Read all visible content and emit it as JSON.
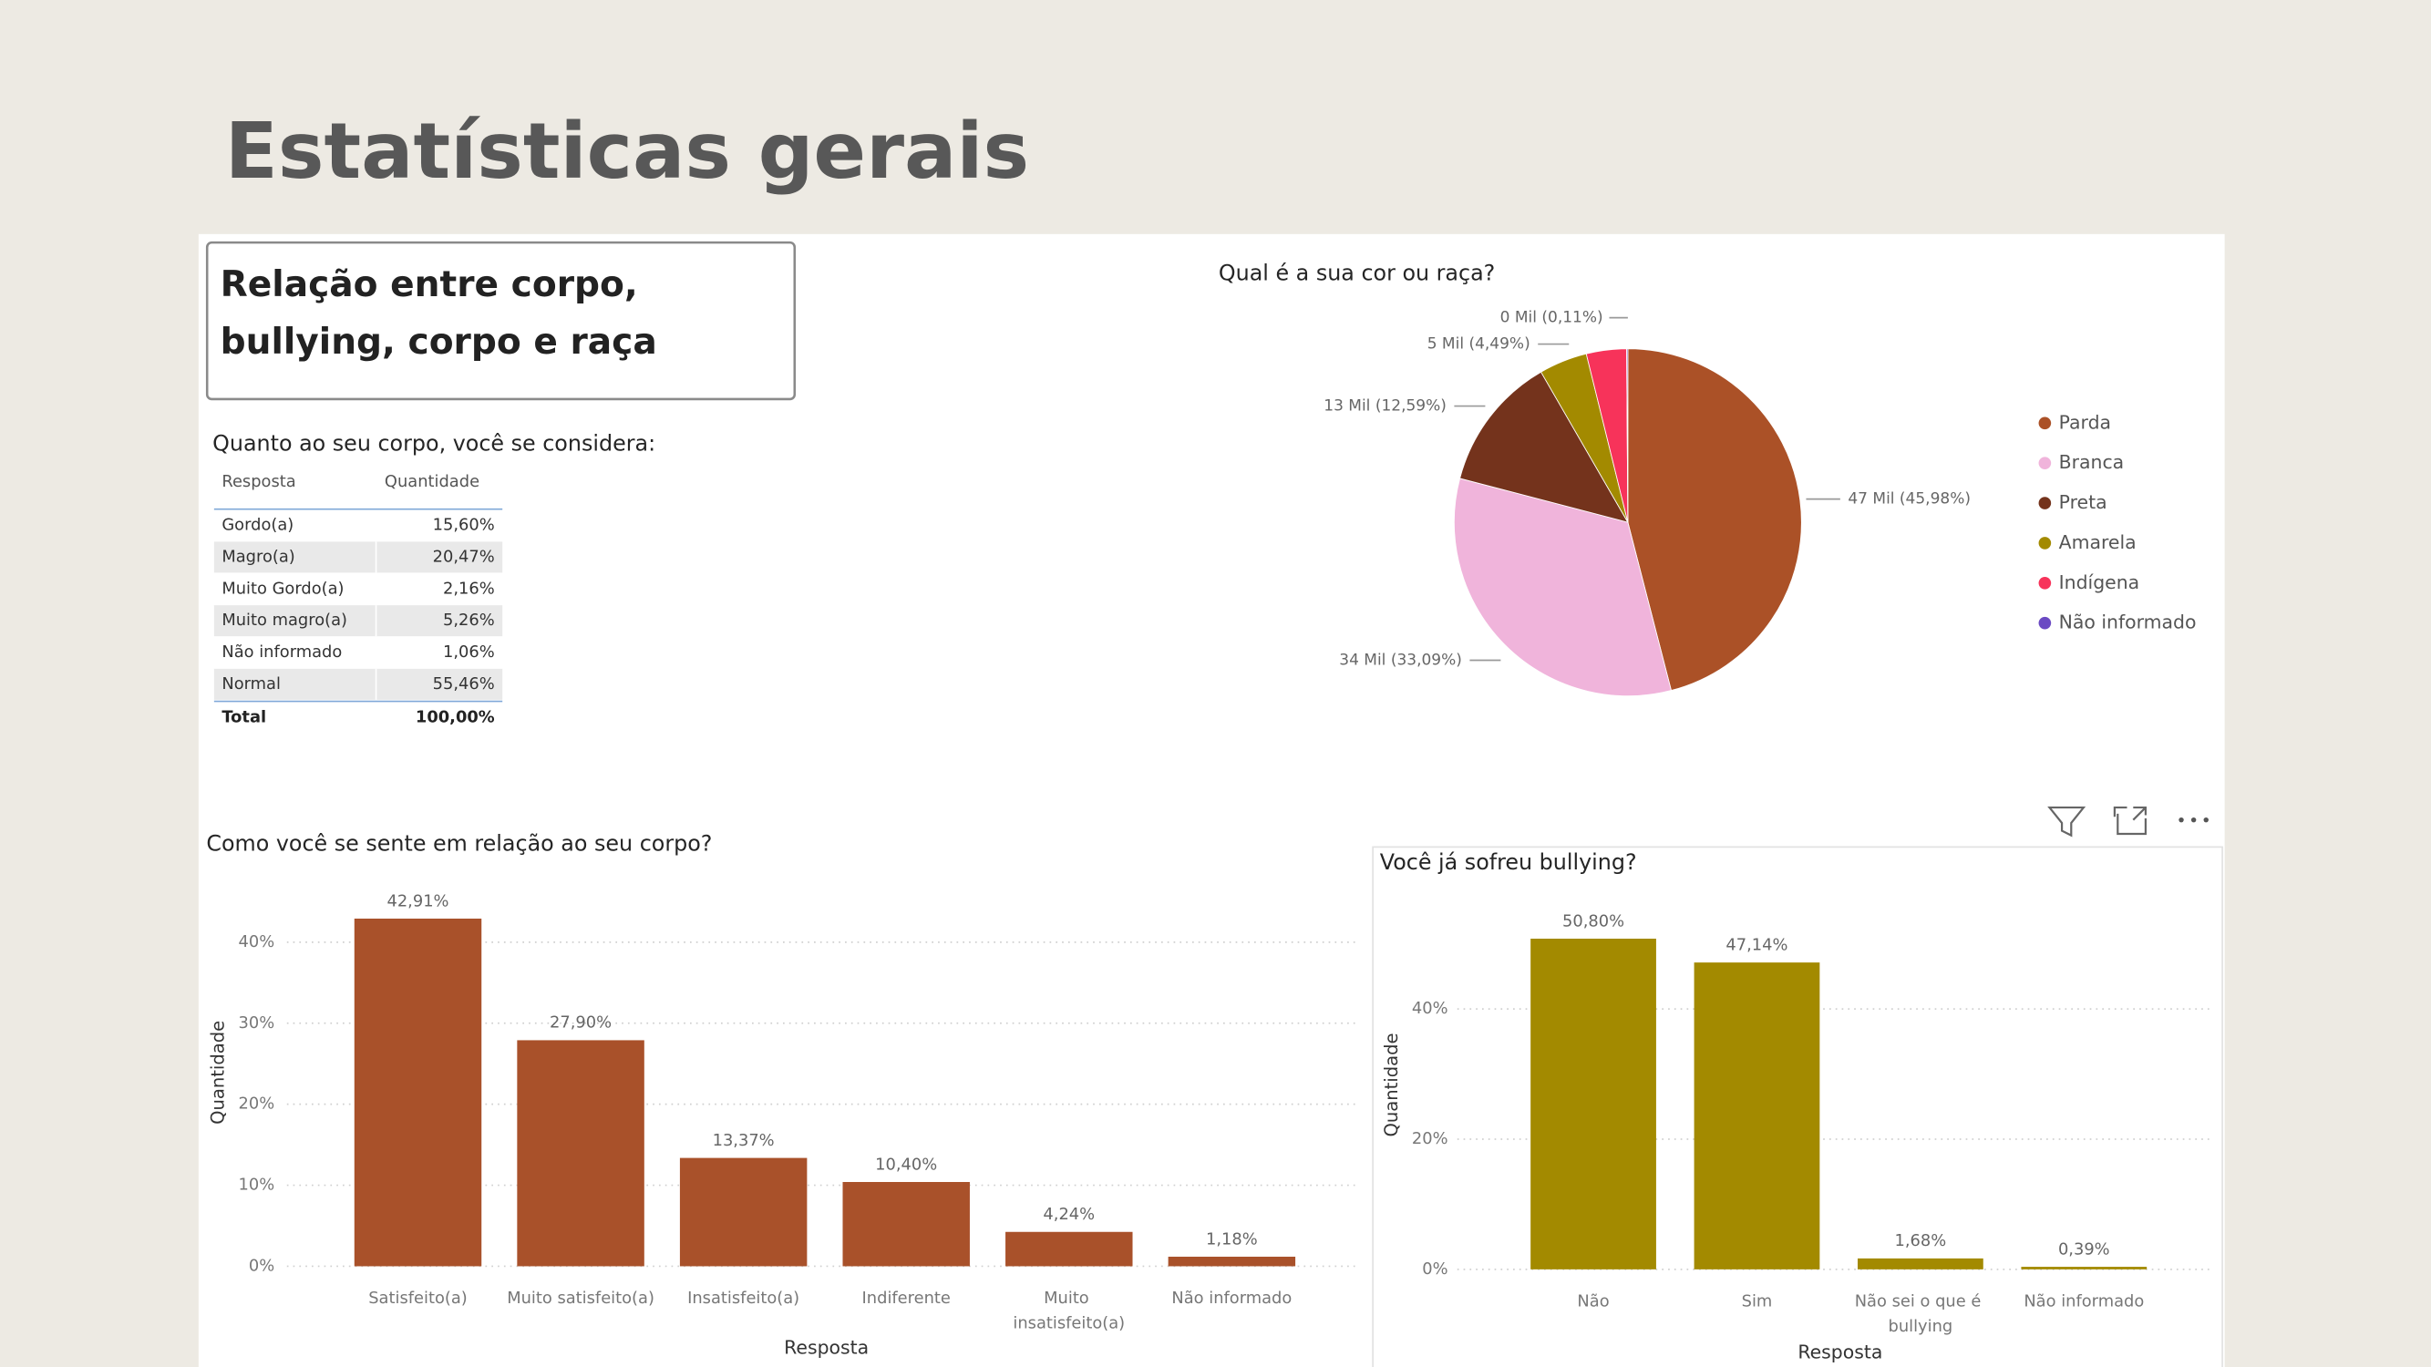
{
  "page_title": "Estatísticas gerais",
  "card_title": [
    "Relação entre corpo,",
    "bullying, corpo e raça"
  ],
  "table": {
    "title": "Quanto ao seu corpo, você se considera:",
    "columns": [
      "Resposta",
      "Quantidade"
    ],
    "rows": [
      [
        "Gordo(a)",
        "15,60%"
      ],
      [
        "Magro(a)",
        "20,47%"
      ],
      [
        "Muito Gordo(a)",
        "2,16%"
      ],
      [
        "Muito magro(a)",
        "5,26%"
      ],
      [
        "Não informado",
        "1,06%"
      ],
      [
        "Normal",
        "55,46%"
      ]
    ],
    "total": [
      "Total",
      "100,00%"
    ]
  },
  "chart_data": [
    {
      "type": "pie",
      "title": "Qual é a sua cor ou raça?",
      "categories": [
        "Parda",
        "Branca",
        "Preta",
        "Amarela",
        "Indígena",
        "Não informado"
      ],
      "values": [
        45.98,
        33.09,
        12.59,
        4.49,
        3.74,
        0.11
      ],
      "value_labels": [
        "47 Mil (45,98%)",
        "34 Mil (33,09%)",
        "13 Mil (12,59%)",
        "5 Mil (4,49%)",
        null,
        "0 Mil (0,11%)"
      ],
      "colors": [
        "#ab5127",
        "#f0b4db",
        "#74331c",
        "#a38a00",
        "#f7335a",
        "#6b4ac3"
      ],
      "legend": "right"
    },
    {
      "type": "bar",
      "title": "Como você se sente em relação ao seu corpo?",
      "x_label": "Resposta",
      "y_label": "Quantidade",
      "categories": [
        "Satisfeito(a)",
        "Muito satisfeito(a)",
        "Insatisfeito(a)",
        "Indiferente",
        "Muito insatisfeito(a)",
        "Não informado"
      ],
      "values": [
        42.91,
        27.9,
        13.37,
        10.4,
        4.24,
        1.18
      ],
      "value_labels": [
        "42,91%",
        "27,90%",
        "13,37%",
        "10,40%",
        "4,24%",
        "1,18%"
      ],
      "color": "#a9512a",
      "ylim": [
        0,
        44
      ],
      "yticks": [
        {
          "value": 0,
          "label": "0%"
        },
        {
          "value": 10,
          "label": "10%"
        },
        {
          "value": 20,
          "label": "20%"
        },
        {
          "value": 30,
          "label": "30%"
        },
        {
          "value": 40,
          "label": "40%"
        }
      ],
      "grid": true
    },
    {
      "type": "bar",
      "title": "Você já sofreu bullying?",
      "x_label": "Resposta",
      "y_label": "Quantidade",
      "categories": [
        "Não",
        "Sim",
        "Não sei o que é bullying",
        "Não informado"
      ],
      "values": [
        50.8,
        47.14,
        1.68,
        0.39
      ],
      "value_labels": [
        "50,80%",
        "47,14%",
        "1,68%",
        "0,39%"
      ],
      "color": "#a38a00",
      "ylim": [
        0,
        55
      ],
      "yticks": [
        {
          "value": 0,
          "label": "0%"
        },
        {
          "value": 20,
          "label": "20%"
        },
        {
          "value": 40,
          "label": "40%"
        }
      ],
      "grid": true
    }
  ]
}
